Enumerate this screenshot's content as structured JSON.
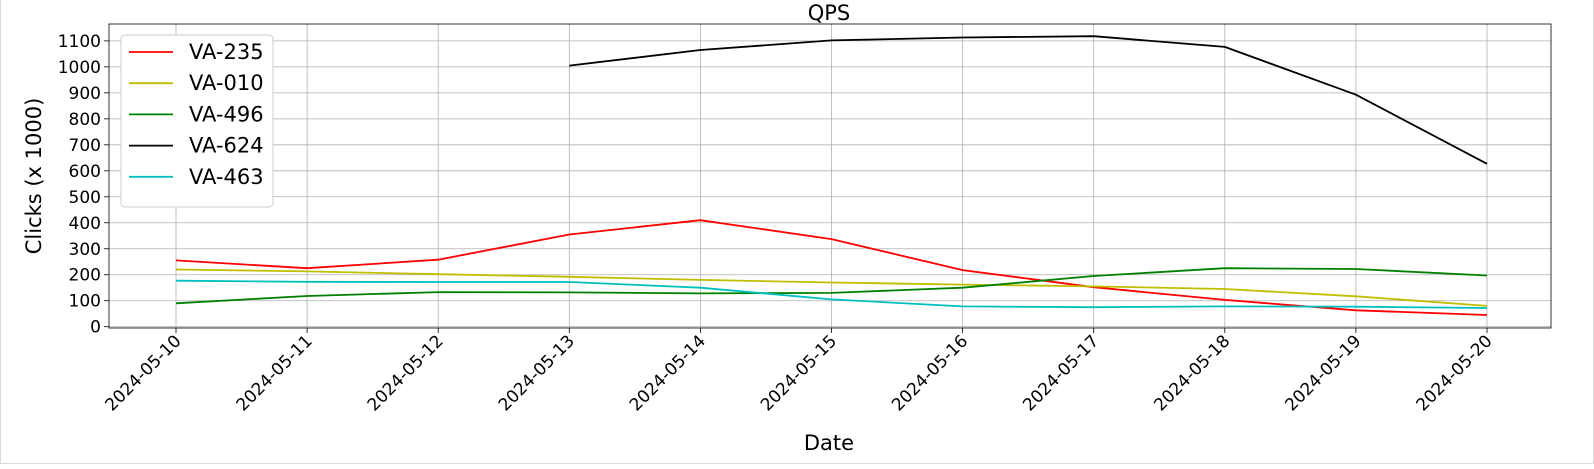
{
  "chart_data": {
    "type": "line",
    "title": "QPS",
    "xlabel": "Date",
    "ylabel": "Clicks (x 1000)",
    "ylim": [
      -5,
      1165
    ],
    "yticks": [
      0,
      100,
      200,
      300,
      400,
      500,
      600,
      700,
      800,
      900,
      1000,
      1100
    ],
    "grid": true,
    "legend_position": "top-left",
    "x": [
      "2024-05-10",
      "2024-05-11",
      "2024-05-12",
      "2024-05-13",
      "2024-05-14",
      "2024-05-15",
      "2024-05-16",
      "2024-05-17",
      "2024-05-18",
      "2024-05-19",
      "2024-05-20"
    ],
    "series": [
      {
        "name": "VA-235",
        "color": "#ff0000",
        "values": [
          255,
          225,
          258,
          355,
          410,
          337,
          218,
          152,
          103,
          63,
          45
        ]
      },
      {
        "name": "VA-010",
        "color": "#bfbf00",
        "values": [
          220,
          213,
          202,
          192,
          180,
          170,
          162,
          155,
          145,
          117,
          80
        ]
      },
      {
        "name": "VA-496",
        "color": "#008000",
        "values": [
          90,
          118,
          133,
          132,
          128,
          130,
          150,
          195,
          225,
          222,
          197
        ]
      },
      {
        "name": "VA-624",
        "color": "#000000",
        "values": [
          null,
          null,
          null,
          1005,
          1065,
          1102,
          1113,
          1118,
          1077,
          893,
          627
        ]
      },
      {
        "name": "VA-463",
        "color": "#00bfbf",
        "values": [
          177,
          173,
          172,
          172,
          150,
          105,
          78,
          75,
          78,
          77,
          72
        ]
      }
    ]
  }
}
